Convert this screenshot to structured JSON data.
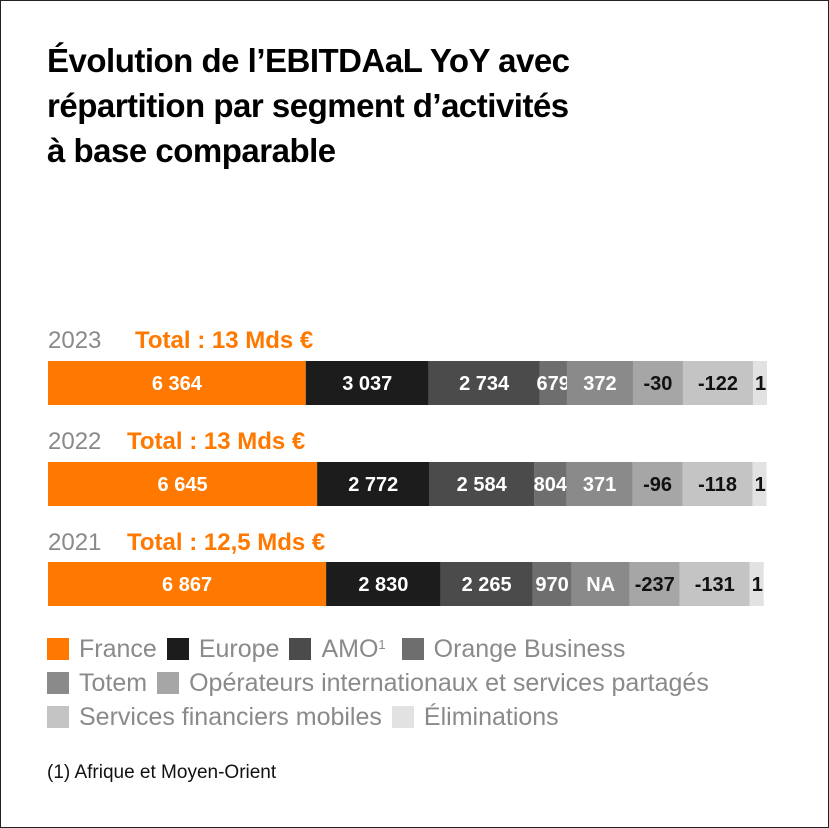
{
  "title_lines": [
    "Évolution de l’EBITDAaL YoY avec",
    "répartition par segment d’activités",
    "à base comparable"
  ],
  "colors": {
    "France": "#ff7900",
    "Europe": "#1c1c1c",
    "AMO": "#4b4b4b",
    "Orange Business": "#6e6e6e",
    "Totem": "#8a8a8a",
    "Operateurs": "#a6a6a6",
    "Services financiers mobiles": "#c4c4c4",
    "Eliminations": "#e2e2e2",
    "year_label": "#8a8a8a",
    "total_label": "#ff7900"
  },
  "chart_data": {
    "type": "bar",
    "orientation": "horizontal-stacked",
    "categories": [
      "2023",
      "2022",
      "2021"
    ],
    "totals": [
      "Total : 13 Mds €",
      "Total : 13 Mds €",
      "Total : 12,5 Mds €"
    ],
    "series": [
      {
        "name": "France",
        "values": [
          6364,
          6645,
          6867
        ],
        "labels": [
          "6 364",
          "6 645",
          "6 867"
        ]
      },
      {
        "name": "Europe",
        "values": [
          3037,
          2772,
          2830
        ],
        "labels": [
          "3 037",
          "2 772",
          "2 830"
        ]
      },
      {
        "name": "AMO",
        "values": [
          2734,
          2584,
          2265
        ],
        "labels": [
          "2 734",
          "2 584",
          "2 265"
        ]
      },
      {
        "name": "Orange Business",
        "values": [
          679,
          804,
          970
        ],
        "labels": [
          "679",
          "804",
          "970"
        ]
      },
      {
        "name": "Totem",
        "values": [
          372,
          371,
          null
        ],
        "labels": [
          "372",
          "371",
          "NA"
        ]
      },
      {
        "name": "Opérateurs internationaux et services partagés",
        "values": [
          -30,
          -96,
          -237
        ],
        "labels": [
          "-30",
          "-96",
          "-237"
        ]
      },
      {
        "name": "Services financiers mobiles",
        "values": [
          -122,
          -118,
          -131
        ],
        "labels": [
          "-122",
          "-118",
          "-131"
        ]
      },
      {
        "name": "Éliminations",
        "values": [
          1,
          1,
          1
        ],
        "labels": [
          "1",
          "1",
          "1"
        ]
      }
    ]
  },
  "legend": {
    "france": "France",
    "europe": "Europe",
    "amo": "AMO",
    "amo_sup": "1",
    "orange_business": "Orange Business",
    "totem": "Totem",
    "operateurs": "Opérateurs internationaux et services partagés",
    "sfm": "Services financiers mobiles",
    "eliminations": "Éliminations"
  },
  "footnote": "(1) Afrique et Moyen-Orient"
}
